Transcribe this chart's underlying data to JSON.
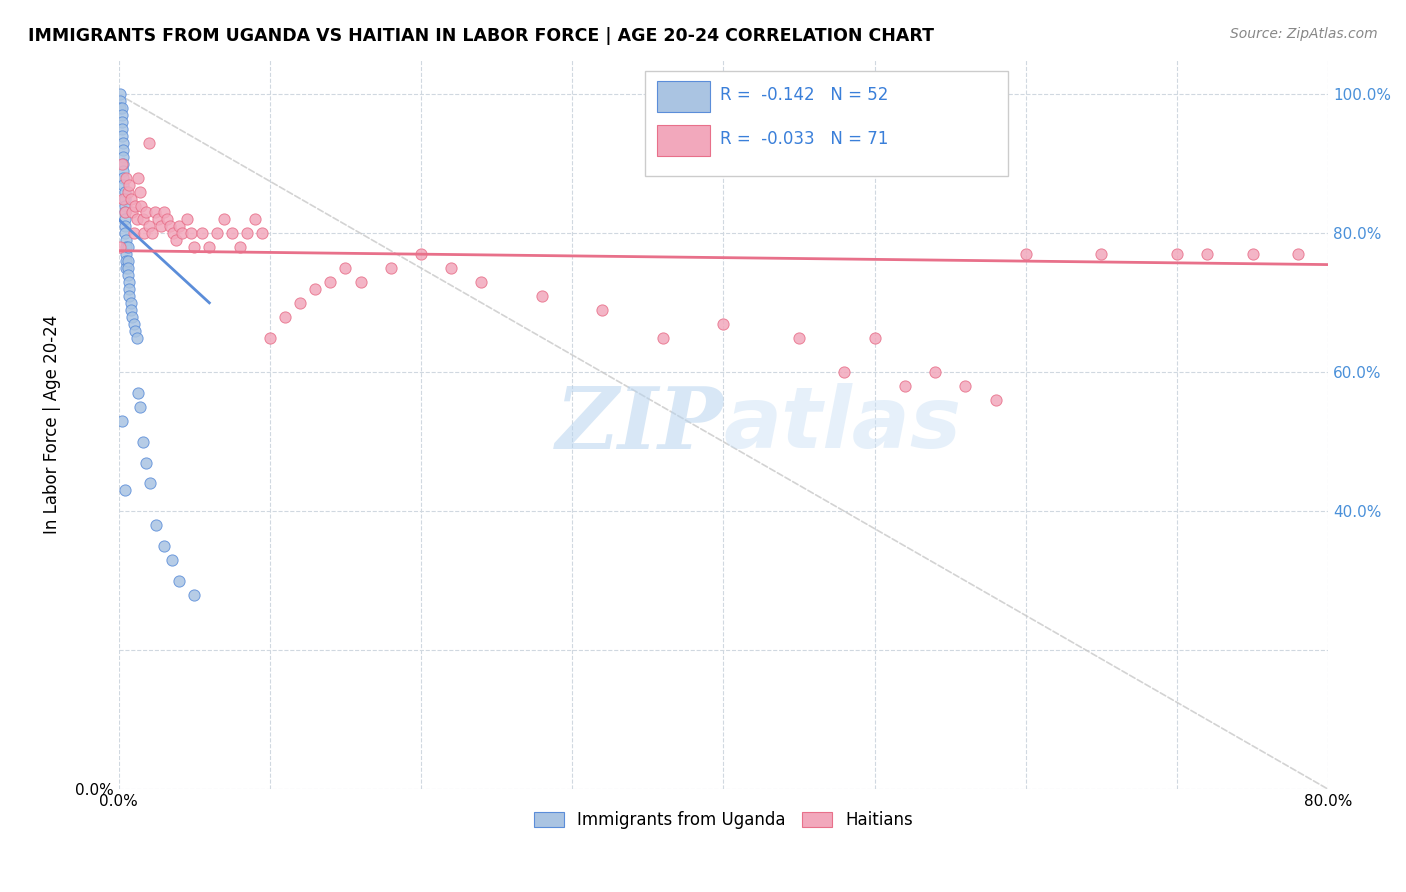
{
  "title": "IMMIGRANTS FROM UGANDA VS HAITIAN IN LABOR FORCE | AGE 20-24 CORRELATION CHART",
  "source": "Source: ZipAtlas.com",
  "ylabel": "In Labor Force | Age 20-24",
  "legend_label1": "Immigrants from Uganda",
  "legend_label2": "Haitians",
  "R1": -0.142,
  "N1": 52,
  "R2": -0.033,
  "N2": 71,
  "color_uganda": "#aac4e2",
  "color_haiti": "#f2a8bc",
  "color_trendline_uganda": "#5b8dd9",
  "color_trendline_haiti": "#e8708a",
  "color_diagonal": "#c8c8c8",
  "xlim": [
    0.0,
    0.8
  ],
  "ylim": [
    0.0,
    1.05
  ],
  "watermark_zip": "ZIP",
  "watermark_atlas": "atlas",
  "uganda_x": [
    0.001,
    0.001,
    0.001,
    0.002,
    0.002,
    0.002,
    0.002,
    0.002,
    0.003,
    0.003,
    0.003,
    0.003,
    0.003,
    0.003,
    0.003,
    0.004,
    0.004,
    0.004,
    0.004,
    0.004,
    0.004,
    0.004,
    0.005,
    0.005,
    0.005,
    0.005,
    0.005,
    0.006,
    0.006,
    0.006,
    0.006,
    0.007,
    0.007,
    0.007,
    0.008,
    0.008,
    0.009,
    0.01,
    0.011,
    0.012,
    0.013,
    0.014,
    0.016,
    0.018,
    0.021,
    0.025,
    0.03,
    0.035,
    0.04,
    0.05,
    0.002,
    0.004
  ],
  "uganda_y": [
    1.0,
    0.99,
    0.98,
    0.98,
    0.97,
    0.96,
    0.95,
    0.94,
    0.93,
    0.92,
    0.91,
    0.9,
    0.89,
    0.88,
    0.87,
    0.86,
    0.85,
    0.84,
    0.83,
    0.82,
    0.81,
    0.8,
    0.79,
    0.78,
    0.77,
    0.76,
    0.75,
    0.78,
    0.76,
    0.75,
    0.74,
    0.73,
    0.72,
    0.71,
    0.7,
    0.69,
    0.68,
    0.67,
    0.66,
    0.65,
    0.57,
    0.55,
    0.5,
    0.47,
    0.44,
    0.38,
    0.35,
    0.33,
    0.3,
    0.28,
    0.53,
    0.43
  ],
  "uganda_trendline_x": [
    0.0,
    0.06
  ],
  "uganda_trendline_y": [
    0.82,
    0.7
  ],
  "haiti_x": [
    0.001,
    0.002,
    0.003,
    0.004,
    0.005,
    0.006,
    0.007,
    0.008,
    0.009,
    0.01,
    0.011,
    0.012,
    0.013,
    0.014,
    0.015,
    0.016,
    0.017,
    0.018,
    0.02,
    0.022,
    0.024,
    0.026,
    0.028,
    0.03,
    0.032,
    0.034,
    0.036,
    0.038,
    0.04,
    0.042,
    0.045,
    0.048,
    0.05,
    0.055,
    0.06,
    0.065,
    0.07,
    0.075,
    0.08,
    0.085,
    0.09,
    0.095,
    0.1,
    0.11,
    0.12,
    0.13,
    0.14,
    0.15,
    0.16,
    0.18,
    0.2,
    0.22,
    0.24,
    0.28,
    0.32,
    0.36,
    0.4,
    0.45,
    0.48,
    0.5,
    0.52,
    0.54,
    0.56,
    0.58,
    0.6,
    0.65,
    0.7,
    0.72,
    0.75,
    0.78,
    0.02
  ],
  "haiti_y": [
    0.78,
    0.9,
    0.85,
    0.83,
    0.88,
    0.86,
    0.87,
    0.85,
    0.83,
    0.8,
    0.84,
    0.82,
    0.88,
    0.86,
    0.84,
    0.82,
    0.8,
    0.83,
    0.81,
    0.8,
    0.83,
    0.82,
    0.81,
    0.83,
    0.82,
    0.81,
    0.8,
    0.79,
    0.81,
    0.8,
    0.82,
    0.8,
    0.78,
    0.8,
    0.78,
    0.8,
    0.82,
    0.8,
    0.78,
    0.8,
    0.82,
    0.8,
    0.65,
    0.68,
    0.7,
    0.72,
    0.73,
    0.75,
    0.73,
    0.75,
    0.77,
    0.75,
    0.73,
    0.71,
    0.69,
    0.65,
    0.67,
    0.65,
    0.6,
    0.65,
    0.58,
    0.6,
    0.58,
    0.56,
    0.77,
    0.77,
    0.77,
    0.77,
    0.77,
    0.77,
    0.93
  ],
  "haiti_trendline_x": [
    0.0,
    0.8
  ],
  "haiti_trendline_y": [
    0.775,
    0.755
  ]
}
